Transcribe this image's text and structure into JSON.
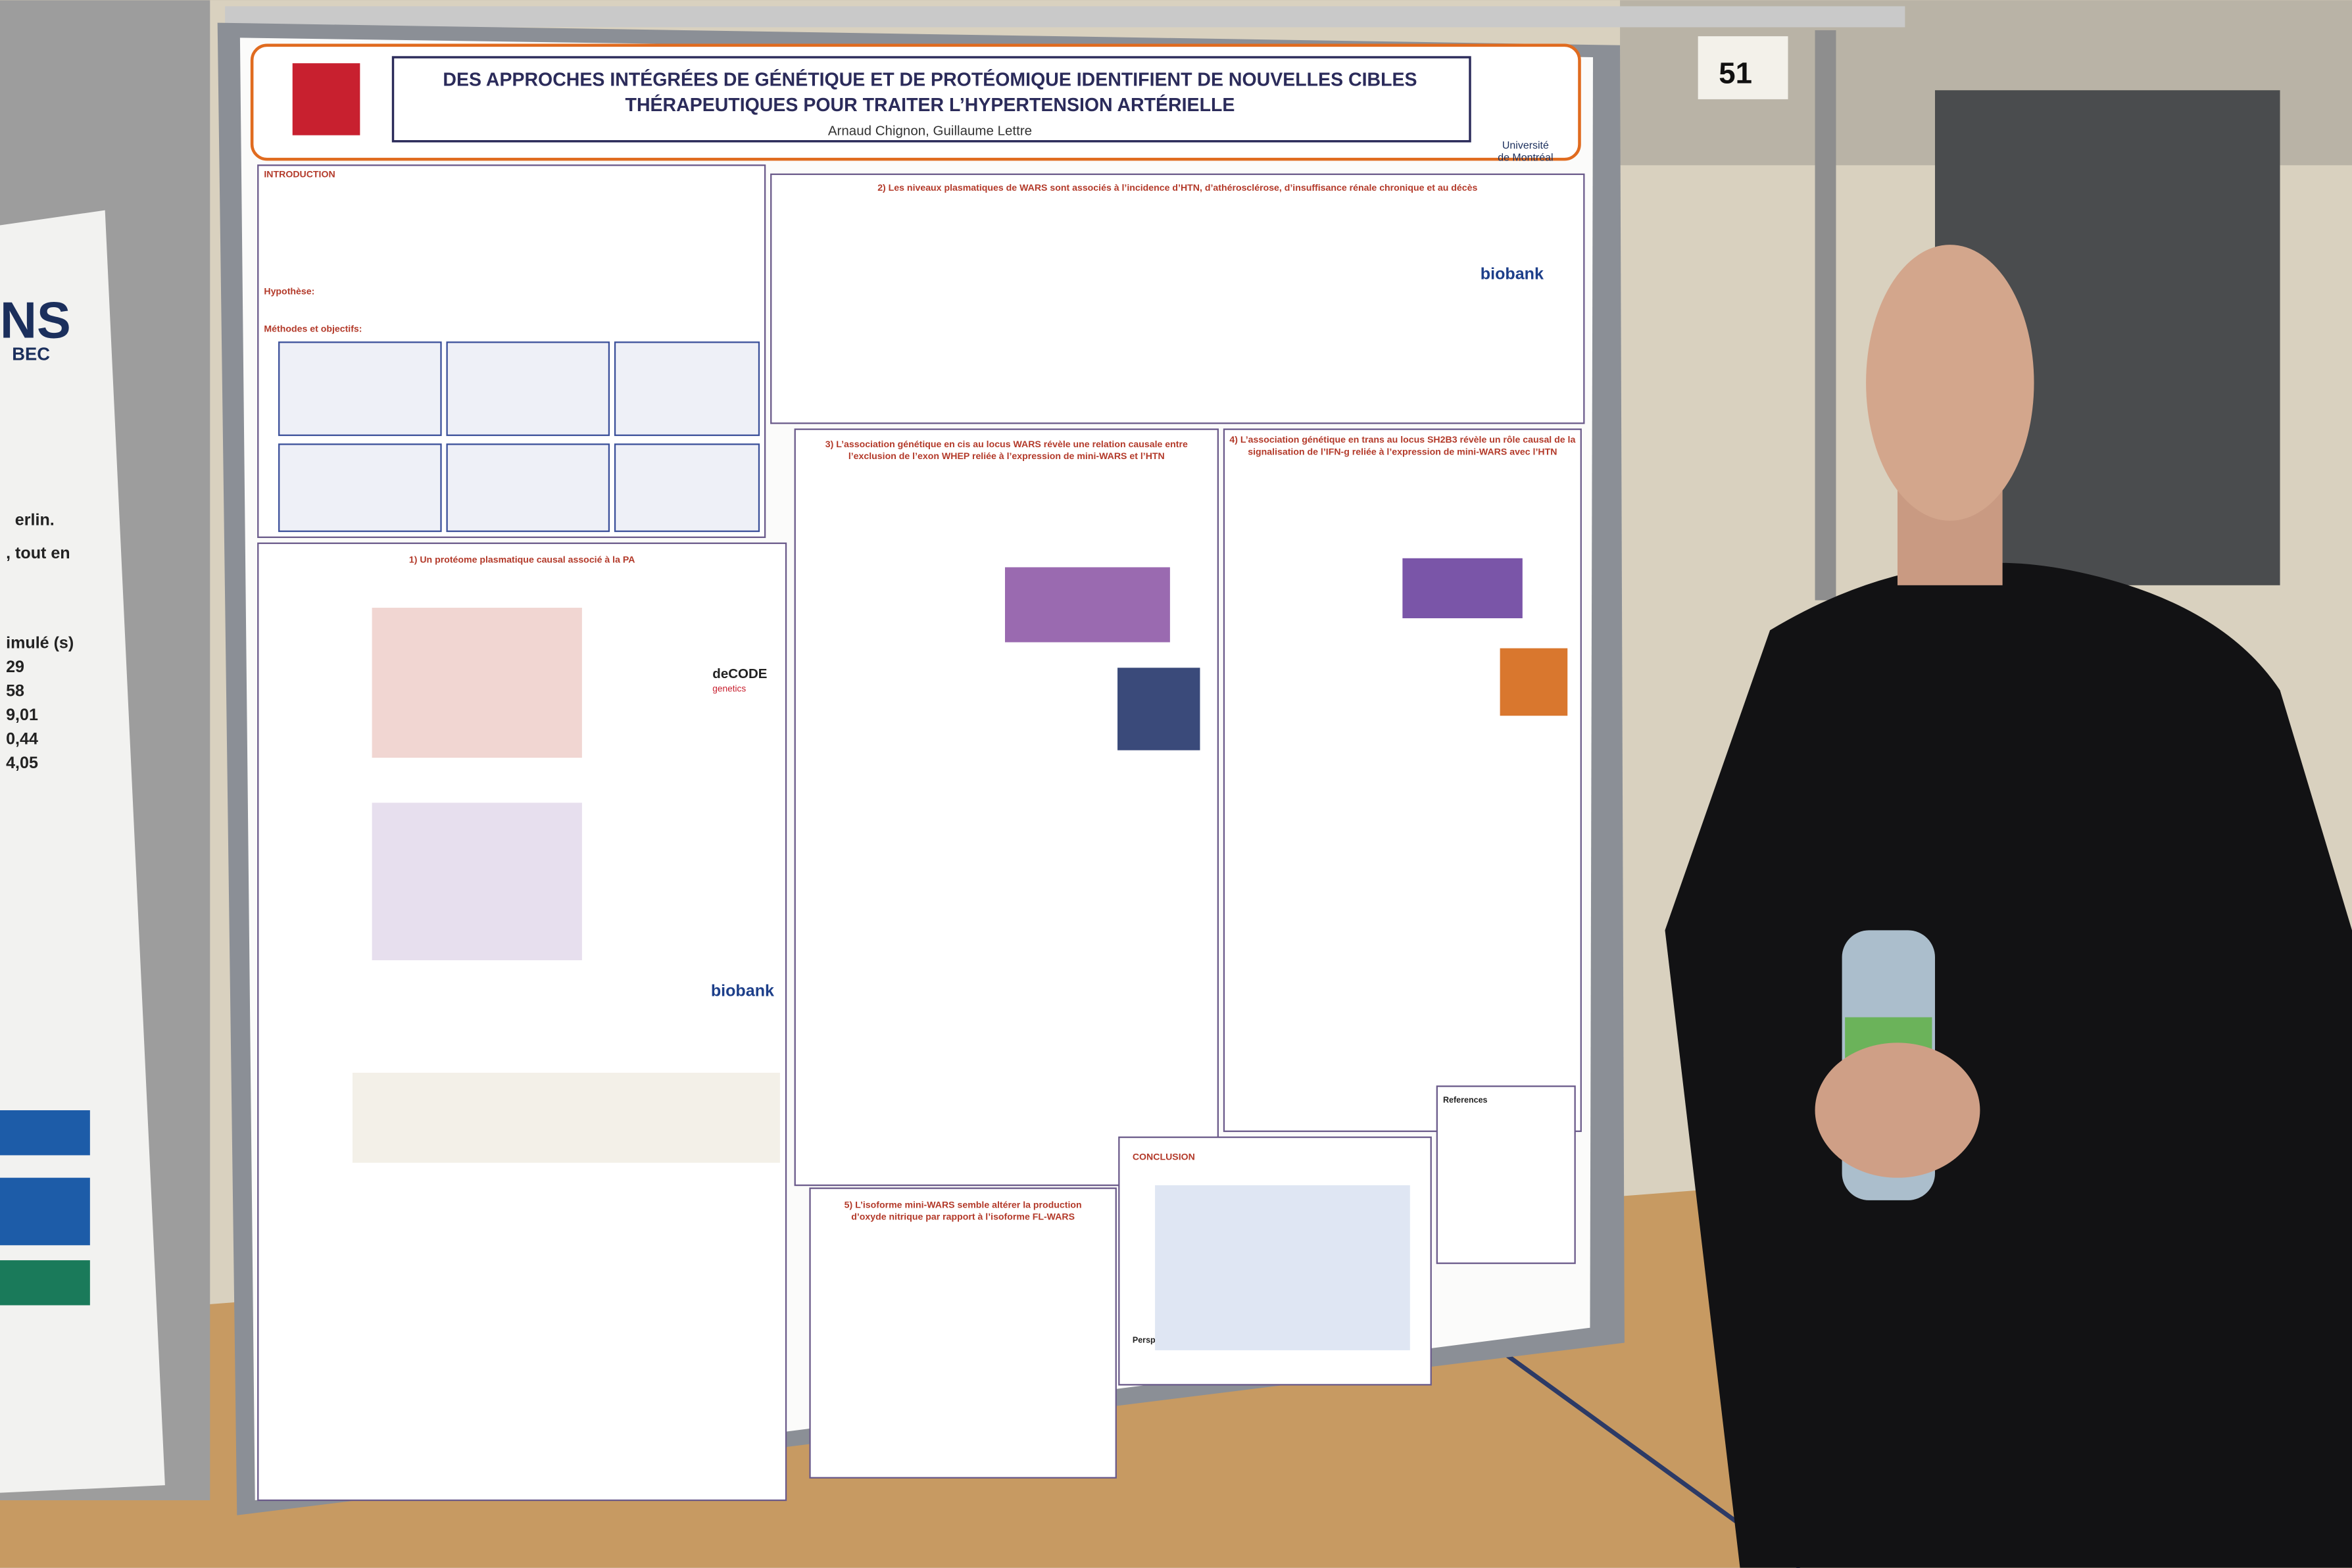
{
  "sign_number": "51",
  "poster": {
    "title_lines": [
      "DES APPROCHES INTÉGRÉES DE GÉNÉTIQUE ET DE PROTÉOMIQUE IDENTIFIENT DE NOUVELLES CIBLES",
      "THÉRAPEUTIQUES POUR TRAITER L’HYPERTENSION ARTÉRIELLE"
    ],
    "authors": "Arnaud Chignon, Guillaume Lettre",
    "affiliation": [
      "Université",
      "de Montréal"
    ],
    "introduction": {
      "heading": "INTRODUCTION",
      "hypothesis": "Hypothèse:",
      "methods": "Méthodes et objectifs:"
    },
    "sections": [
      {
        "heading": [
          "1) Un protéome plasmatique causal associé à la PA"
        ]
      },
      {
        "heading": [
          "2) Les niveaux plasmatiques de WARS sont associés à l’incidence d’HTN, d’athérosclérose, d’insuffisance rénale chronique et au décès"
        ]
      },
      {
        "heading": [
          "3) L’association génétique en cis au locus WARS révèle une relation causale entre",
          "l’exclusion de l’exon WHEP reliée à l’expression de mini-WARS et l’HTN"
        ]
      },
      {
        "heading": [
          "4) L’association génétique en trans au locus SH2B3 révèle un rôle causal de la",
          "signalisation de l’IFN-g reliée à l’expression de mini-WARS avec l’HTN"
        ]
      },
      {
        "heading": [
          "5) L’isoforme mini-WARS semble altérer la production",
          "d’oxyde nitrique par rapport à l’isoforme FL-WARS"
        ]
      }
    ],
    "conclusion": {
      "heading": "CONCLUSION",
      "perspectives": "Perspectives:"
    },
    "references": "References",
    "logos": {
      "biobank": "biobank",
      "decode": [
        "deCODE",
        "genetics"
      ]
    }
  },
  "left_poster": {
    "fragments": [
      "NS",
      "BEC",
      "erlin.",
      ", tout en",
      "imulé (s)",
      "29",
      "58",
      "9,01",
      "0,44",
      "4,05"
    ]
  }
}
